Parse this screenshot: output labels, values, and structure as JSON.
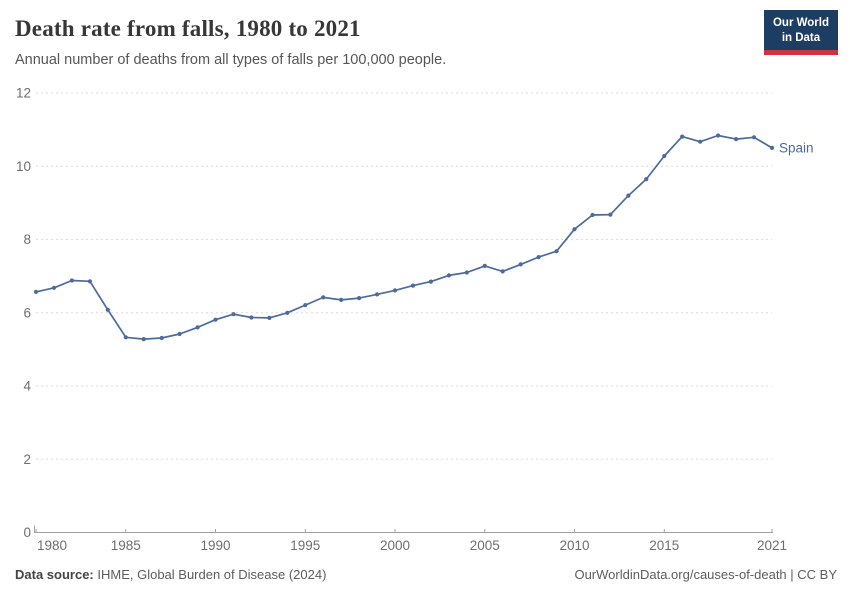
{
  "header": {
    "title": "Death rate from falls, 1980 to 2021",
    "subtitle": "Annual number of deaths from all types of falls per 100,000 people.",
    "logo": {
      "line1": "Our World",
      "line2": "in Data",
      "bg_color": "#1d3d63",
      "accent_color": "#d0323f"
    }
  },
  "chart_data": {
    "type": "line",
    "title": "Death rate from falls, 1980 to 2021",
    "xlabel": "",
    "ylabel": "",
    "xlim": [
      1980,
      2021
    ],
    "ylim": [
      0,
      12
    ],
    "x_ticks": [
      1980,
      1985,
      1990,
      1995,
      2000,
      2005,
      2010,
      2015,
      2021
    ],
    "y_ticks": [
      0,
      2,
      4,
      6,
      8,
      10,
      12
    ],
    "grid": "horizontal-dashed",
    "legend_position": "end-of-line-label",
    "grid_color": "#dcdcdc",
    "axis_color": "#a1a1a1",
    "tick_label_color": "#6e6e6e",
    "series": [
      {
        "name": "Spain",
        "color": "#4c6a9c",
        "x": [
          1980,
          1981,
          1982,
          1983,
          1984,
          1985,
          1986,
          1987,
          1988,
          1989,
          1990,
          1991,
          1992,
          1993,
          1994,
          1995,
          1996,
          1997,
          1998,
          1999,
          2000,
          2001,
          2002,
          2003,
          2004,
          2005,
          2006,
          2007,
          2008,
          2009,
          2010,
          2011,
          2012,
          2013,
          2014,
          2015,
          2016,
          2017,
          2018,
          2019,
          2020,
          2021
        ],
        "values": [
          6.57,
          6.68,
          6.88,
          6.86,
          6.08,
          5.33,
          5.28,
          5.31,
          5.42,
          5.6,
          5.81,
          5.96,
          5.87,
          5.86,
          6.0,
          6.21,
          6.42,
          6.35,
          6.4,
          6.5,
          6.61,
          6.74,
          6.85,
          7.02,
          7.1,
          7.28,
          7.13,
          7.32,
          7.52,
          7.68,
          8.28,
          8.67,
          8.68,
          9.2,
          9.65,
          10.28,
          10.81,
          10.67,
          10.84,
          10.74,
          10.79,
          10.5
        ]
      }
    ]
  },
  "footer": {
    "source_label": "Data source:",
    "source_text": " IHME, Global Burden of Disease (2024)",
    "credit": "OurWorldinData.org/causes-of-death | CC BY"
  }
}
